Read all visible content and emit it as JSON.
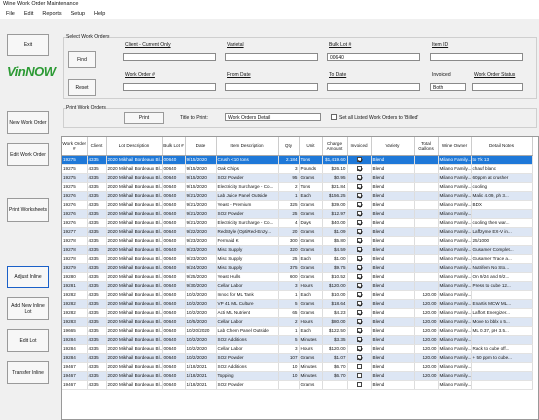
{
  "window": {
    "title": "Wine Work Order Maintenance"
  },
  "menu": [
    "File",
    "Edit",
    "Reports",
    "Setup",
    "Help"
  ],
  "sidebar": {
    "exit": "Exit",
    "logo": "VinNOW",
    "new_work_order": "New Work Order",
    "edit_work_order": "Edit Work Order",
    "print_worksheets": "Print Worksheets",
    "adjust_inline": "Adjust Inline",
    "add_new_inline_lot": "Add New Inline Lot",
    "edit_lot": "Edit Lot",
    "transfer_inline": "Transfer Inline"
  },
  "select": {
    "group_label": "Select Work Orders",
    "client_label": "Client - Current Only",
    "client_value": "",
    "varietal_label": "Varietal",
    "varietal_value": "",
    "bulk_lot_label": "Bulk Lot #",
    "bulk_lot_value": "00640",
    "item_id_label": "Item ID",
    "item_id_value": "",
    "work_order_label": "Work Order #",
    "work_order_value": "",
    "from_date_label": "From Date",
    "from_date_value": "",
    "to_date_label": "To Date",
    "to_date_value": "",
    "invoiced_label": "Invoiced",
    "invoiced_value": "Both",
    "status_label": "Work Order Status",
    "status_value": "",
    "find_button": "Find",
    "reset_button": "Reset"
  },
  "print": {
    "group_label": "Print Work Orders",
    "print_button": "Print",
    "title_label": "Title to Print:",
    "title_value": "Work Orders Detail",
    "billed_label": "Set all Listed Work Orders to 'Billed'"
  },
  "columns": [
    "Work Order #",
    "Client",
    "Lot Description",
    "Bulk Lot #",
    "Date",
    "Item Description",
    "Qty",
    "Unit",
    "Charge Amount",
    "Invoiced",
    "Variety",
    "Total Gallons",
    "Wine Owner",
    "Detail Notes"
  ],
  "rows": [
    {
      "wo": "19275",
      "client": "4335",
      "lot": "2020 Mikhail Bordeaux Bl...",
      "bulk": "00640",
      "date": "9/15/2020",
      "item": "Crush <10 tons",
      "qty": "2.184",
      "unit": "Tons",
      "charge": "$1,419.60",
      "inv": true,
      "variety": "Blend",
      "gallons": "",
      "owner": "Milano Family...",
      "notes": "to Tk 13"
    },
    {
      "wo": "19275",
      "client": "4335",
      "lot": "2020 Mikhail Bordeaux Bl...",
      "bulk": "00640",
      "date": "9/15/2020",
      "item": "Oak Chips",
      "qty": "3",
      "unit": "Pounds",
      "charge": "$26.10",
      "inv": true,
      "variety": "Blend",
      "gallons": "",
      "owner": "Milano Family...",
      "notes": "chauf blanc"
    },
    {
      "wo": "19275",
      "client": "4335",
      "lot": "2020 Mikhail Bordeaux Bl...",
      "bulk": "00640",
      "date": "9/15/2020",
      "item": "SO2 Powder",
      "qty": "95",
      "unit": "Grams",
      "charge": "$0.95",
      "inv": true,
      "variety": "Blend",
      "gallons": "",
      "owner": "Milano Family...",
      "notes": "60ppm at crusher"
    },
    {
      "wo": "19275",
      "client": "4335",
      "lot": "2020 Mikhail Bordeaux Bl...",
      "bulk": "00640",
      "date": "9/15/2020",
      "item": "Electricity Surcharge - Co...",
      "qty": "2",
      "unit": "Tons",
      "charge": "$21.84",
      "inv": true,
      "variety": "Blend",
      "gallons": "",
      "owner": "Milano Family...",
      "notes": "cooling"
    },
    {
      "wo": "19276",
      "client": "4335",
      "lot": "2020 Mikhail Bordeaux Bl...",
      "bulk": "00640",
      "date": "9/21/2020",
      "item": "Lab Juice Panel Outside",
      "qty": "1",
      "unit": "Each",
      "charge": "$156.25",
      "inv": true,
      "variety": "Blend",
      "gallons": "",
      "owner": "Milano Family...",
      "notes": "Malic 4.09, ph 3..."
    },
    {
      "wo": "19276",
      "client": "4335",
      "lot": "2020 Mikhail Bordeaux Bl...",
      "bulk": "00640",
      "date": "9/21/2020",
      "item": "Yeast - Premium",
      "qty": "325",
      "unit": "Grams",
      "charge": "$39.00",
      "inv": true,
      "variety": "Blend",
      "gallons": "",
      "owner": "Milano Family...",
      "notes": "BDX"
    },
    {
      "wo": "19276",
      "client": "4335",
      "lot": "2020 Mikhail Bordeaux Bl...",
      "bulk": "00640",
      "date": "9/21/2020",
      "item": "SO2 Powder",
      "qty": "25",
      "unit": "Grams",
      "charge": "$12.97",
      "inv": true,
      "variety": "Blend",
      "gallons": "",
      "owner": "Milano Family...",
      "notes": ""
    },
    {
      "wo": "19276",
      "client": "4335",
      "lot": "2020 Mikhail Bordeaux Bl...",
      "bulk": "00640",
      "date": "9/21/2020",
      "item": "Electricity Surcharge - Co...",
      "qty": "4",
      "unit": "Days",
      "charge": "$40.00",
      "inv": true,
      "variety": "Blend",
      "gallons": "",
      "owner": "Milano Family...",
      "notes": "cooling then war..."
    },
    {
      "wo": "19277",
      "client": "4335",
      "lot": "2020 Mikhail Bordeaux Bl...",
      "bulk": "00640",
      "date": "9/22/2020",
      "item": "RedStyle (OptiRed-Enzy...",
      "qty": "20",
      "unit": "Grams",
      "charge": "$1.09",
      "inv": true,
      "variety": "Blend",
      "gallons": "",
      "owner": "Milano Family...",
      "notes": "Laffzyme EX-V in..."
    },
    {
      "wo": "19278",
      "client": "4335",
      "lot": "2020 Mikhail Bordeaux Bl...",
      "bulk": "00640",
      "date": "9/23/2020",
      "item": "Fermaid K",
      "qty": "300",
      "unit": "Grams",
      "charge": "$5.80",
      "inv": true,
      "variety": "Blend",
      "gallons": "",
      "owner": "Milano Family...",
      "notes": "25/1000"
    },
    {
      "wo": "19278",
      "client": "4335",
      "lot": "2020 Mikhail Bordeaux Bl...",
      "bulk": "00640",
      "date": "9/23/2020",
      "item": "Misc Supply",
      "qty": "320",
      "unit": "Grams",
      "charge": "$4.59",
      "inv": true,
      "variety": "Blend",
      "gallons": "",
      "owner": "Milano Family...",
      "notes": "Gusamer Complet..."
    },
    {
      "wo": "19278",
      "client": "4335",
      "lot": "2020 Mikhail Bordeaux Bl...",
      "bulk": "00640",
      "date": "9/23/2020",
      "item": "Misc Supply",
      "qty": "25",
      "unit": "Each",
      "charge": "$1.00",
      "inv": true,
      "variety": "Blend",
      "gallons": "",
      "owner": "Milano Family...",
      "notes": "Gusamer Trace a..."
    },
    {
      "wo": "19279",
      "client": "4335",
      "lot": "2020 Mikhail Bordeaux Bl...",
      "bulk": "00640",
      "date": "9/24/2020",
      "item": "Misc Supply",
      "qty": "375",
      "unit": "Grams",
      "charge": "$9.75",
      "inv": true,
      "variety": "Blend",
      "gallons": "",
      "owner": "Milano Family...",
      "notes": "Nutrifem No Sto..."
    },
    {
      "wo": "19280",
      "client": "4335",
      "lot": "2020 Mikhail Bordeaux Bl...",
      "bulk": "00640",
      "date": "9/25/2020",
      "item": "Yeast Hulls",
      "qty": "600",
      "unit": "Grams",
      "charge": "$10.52",
      "inv": true,
      "variety": "Blend",
      "gallons": "",
      "owner": "Milano Family...",
      "notes": "On 9/24 and 9/2..."
    },
    {
      "wo": "19281",
      "client": "4335",
      "lot": "2020 Mikhail Bordeaux Bl...",
      "bulk": "00640",
      "date": "9/30/2020",
      "item": "Cellar Labor",
      "qty": "3",
      "unit": "Hours",
      "charge": "$120.00",
      "inv": true,
      "variety": "Blend",
      "gallons": "",
      "owner": "Milano Family...",
      "notes": "Press to cube 12..."
    },
    {
      "wo": "19282",
      "client": "4335",
      "lot": "2020 Mikhail Bordeaux Bl...",
      "bulk": "00640",
      "date": "10/2/2020",
      "item": "Innoc for ML Tank",
      "qty": "1",
      "unit": "Each",
      "charge": "$10.00",
      "inv": true,
      "variety": "Blend",
      "gallons": "120.00",
      "owner": "Milano Family...",
      "notes": ""
    },
    {
      "wo": "19282",
      "client": "4335",
      "lot": "2020 Mikhail Bordeaux Bl...",
      "bulk": "00640",
      "date": "10/2/2020",
      "item": "VP 41 ML Culture",
      "qty": "5",
      "unit": "Grams",
      "charge": "$18.64",
      "inv": true,
      "variety": "Blend",
      "gallons": "120.00",
      "owner": "Milano Family...",
      "notes": "Enartis MCW ML..."
    },
    {
      "wo": "19282",
      "client": "4335",
      "lot": "2020 Mikhail Bordeaux Bl...",
      "bulk": "00640",
      "date": "10/2/2020",
      "item": "Acti ML Nutrient",
      "qty": "65",
      "unit": "Grams",
      "charge": "$4.23",
      "inv": true,
      "variety": "Blend",
      "gallons": "120.00",
      "owner": "Milano Family...",
      "notes": "Laffort Energizer..."
    },
    {
      "wo": "19283",
      "client": "4335",
      "lot": "2020 Mikhail Bordeaux Bl...",
      "bulk": "00640",
      "date": "10/5/2020",
      "item": "Cellar Labor",
      "qty": "2",
      "unit": "Hours",
      "charge": "$80.00",
      "inv": true,
      "variety": "Blend",
      "gallons": "120.00",
      "owner": "Milano Family...",
      "notes": "Move to bblx x 5..."
    },
    {
      "wo": "19665",
      "client": "4335",
      "lot": "2020 Mikhail Bordeaux Bl...",
      "bulk": "00640",
      "date": "10/20/2020",
      "item": "Lab Chem Panel Outside",
      "qty": "1",
      "unit": "Each",
      "charge": "$122.50",
      "inv": true,
      "variety": "Blend",
      "gallons": "120.00",
      "owner": "Milano Family...",
      "notes": "ML 0.37, pH 3.5..."
    },
    {
      "wo": "19284",
      "client": "4335",
      "lot": "2020 Mikhail Bordeaux Bl...",
      "bulk": "00640",
      "date": "10/2/2020",
      "item": "SO2 Additions",
      "qty": "5",
      "unit": "Minutes",
      "charge": "$3.35",
      "inv": true,
      "variety": "Blend",
      "gallons": "120.00",
      "owner": "Milano Family...",
      "notes": ""
    },
    {
      "wo": "19284",
      "client": "4335",
      "lot": "2020 Mikhail Bordeaux Bl...",
      "bulk": "00640",
      "date": "10/2/2020",
      "item": "Cellar Labor",
      "qty": "3",
      "unit": "Hours",
      "charge": "$120.00",
      "inv": true,
      "variety": "Blend",
      "gallons": "120.00",
      "owner": "Milano Family...",
      "notes": "Rack to cube off..."
    },
    {
      "wo": "19284",
      "client": "4335",
      "lot": "2020 Mikhail Bordeaux Bl...",
      "bulk": "00640",
      "date": "10/2/2020",
      "item": "SO2 Powder",
      "qty": "107",
      "unit": "Grams",
      "charge": "$1.07",
      "inv": true,
      "variety": "Blend",
      "gallons": "120.00",
      "owner": "Milano Family...",
      "notes": "+ 50 ppm to cube..."
    },
    {
      "wo": "19467",
      "client": "4335",
      "lot": "2020 Mikhail Bordeaux Bl...",
      "bulk": "00640",
      "date": "1/18/2021",
      "item": "SO2 Additions",
      "qty": "10",
      "unit": "Minutes",
      "charge": "$6.70",
      "inv": false,
      "variety": "Blend",
      "gallons": "120.00",
      "owner": "Milano Family...",
      "notes": ""
    },
    {
      "wo": "19467",
      "client": "4335",
      "lot": "2020 Mikhail Bordeaux Bl...",
      "bulk": "00640",
      "date": "1/18/2021",
      "item": "Topping",
      "qty": "10",
      "unit": "Minutes",
      "charge": "$6.70",
      "inv": false,
      "variety": "Blend",
      "gallons": "120.00",
      "owner": "Milano Family...",
      "notes": ""
    },
    {
      "wo": "19467",
      "client": "4335",
      "lot": "2020 Mikhail Bordeaux Bl...",
      "bulk": "00640",
      "date": "1/18/2021",
      "item": "SO2 Powder",
      "qty": "",
      "unit": "Grams",
      "charge": "",
      "inv": false,
      "variety": "Blend",
      "gallons": "",
      "owner": "Milano Family...",
      "notes": ""
    }
  ]
}
